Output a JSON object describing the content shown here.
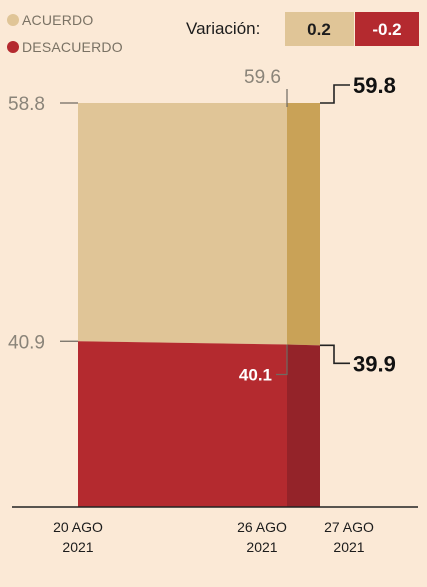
{
  "legend": {
    "acuerdo": "ACUERDO",
    "desacuerdo": "DESACUERDO"
  },
  "variacion": {
    "label": "Variación:",
    "acuerdo": "0.2",
    "desacuerdo": "-0.2"
  },
  "colors": {
    "background": "#fbe9d6",
    "acuerdo": "#e0c597",
    "acuerdo_highlight": "#c9a257",
    "desacuerdo": "#b42a2f",
    "desacuerdo_highlight": "#942329",
    "axis": "#222222"
  },
  "chart_data": {
    "type": "area",
    "x": [
      "20 AGO 2021",
      "26 AGO 2021",
      "27 AGO 2021"
    ],
    "x_tick_labels": [
      [
        "20 AGO",
        "2021"
      ],
      [
        "26 AGO",
        "2021"
      ],
      [
        "27 AGO",
        "2021"
      ]
    ],
    "ylim": [
      0,
      100
    ],
    "stacked": true,
    "series": [
      {
        "name": "DESACUERDO",
        "values": [
          40.9,
          40.1,
          39.9
        ],
        "labels": [
          "40.9",
          "40.1",
          "39.9"
        ]
      },
      {
        "name": "ACUERDO",
        "values": [
          58.8,
          59.6,
          59.8
        ],
        "labels": [
          "58.8",
          "59.6",
          "59.8"
        ]
      }
    ],
    "legend_position": "top-left",
    "grid": false
  }
}
